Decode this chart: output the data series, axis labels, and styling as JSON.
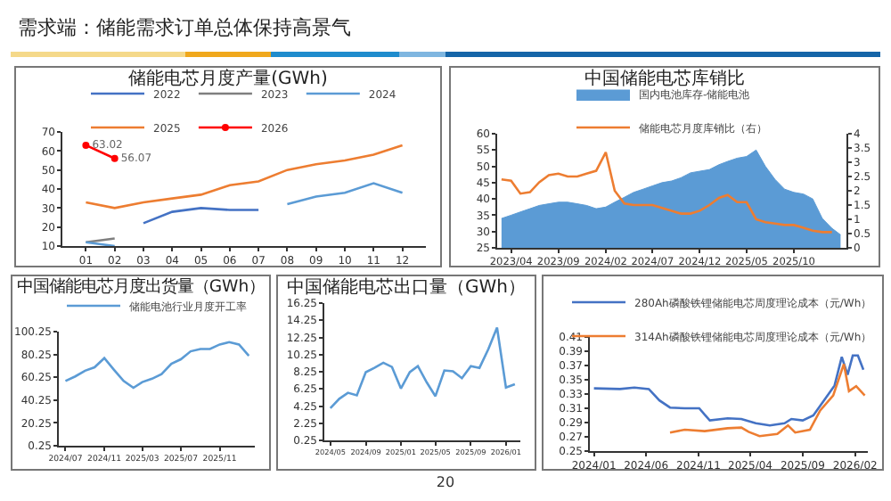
{
  "chart_data": [
    {
      "type": "other",
      "title": "需求端：储能需求订单总体保持高景气",
      "annotations": [
        "20"
      ]
    },
    {
      "type": "line",
      "title": "储能电芯月度产量(GWh)",
      "categories": [
        "01",
        "02",
        "03",
        "04",
        "05",
        "06",
        "07",
        "08",
        "09",
        "10",
        "11",
        "12"
      ],
      "ylim": [
        10,
        70
      ],
      "yticks": [
        10,
        20,
        30,
        40,
        50,
        60,
        70
      ],
      "legend": "top",
      "series": [
        {
          "name": "2022",
          "color": "#4472c4",
          "values": [
            null,
            null,
            22,
            28,
            30,
            29,
            29,
            null,
            null,
            null,
            null,
            null
          ]
        },
        {
          "name": "2023",
          "color": "#7f7f7f",
          "values": [
            12,
            14,
            null,
            null,
            null,
            null,
            null,
            null,
            null,
            null,
            null,
            null
          ]
        },
        {
          "name": "2024",
          "color": "#5b9bd5",
          "values": [
            12,
            10,
            null,
            null,
            null,
            null,
            null,
            32,
            36,
            38,
            43,
            38
          ]
        },
        {
          "name": "2025",
          "color": "#ed7d31",
          "values": [
            33,
            30,
            33,
            35,
            37,
            42,
            44,
            50,
            53,
            55,
            58,
            63
          ]
        },
        {
          "name": "2026",
          "color": "#ff0000",
          "marker": "circle",
          "values": [
            63.02,
            56.07,
            null,
            null,
            null,
            null,
            null,
            null,
            null,
            null,
            null,
            null
          ],
          "value_labels": [
            "63.02",
            "56.07",
            null,
            null,
            null,
            null,
            null,
            null,
            null,
            null,
            null,
            null
          ]
        }
      ]
    },
    {
      "type": "line",
      "title": "中国储能电芯库销比",
      "x": [
        "2023-03",
        "2023-04",
        "2023-05",
        "2023-06",
        "2023-07",
        "2023-08",
        "2023-09",
        "2023-10",
        "2023-11",
        "2023-12",
        "2024-01",
        "2024-02",
        "2024-03",
        "2024-04",
        "2024-05",
        "2024-06",
        "2024-07",
        "2024-08",
        "2024-09",
        "2024-10",
        "2024-11",
        "2024-12",
        "2025-01",
        "2025-02",
        "2025-03",
        "2025-04",
        "2025-05",
        "2025-06",
        "2025-07",
        "2025-08",
        "2025-09",
        "2025-10",
        "2025-11",
        "2025-12",
        "2026-01",
        "2026-02",
        "2026-03"
      ],
      "xlim": [
        "2023-02-15",
        "2026-03-20"
      ],
      "xticks": [
        {
          "value": "2023-04",
          "label": "2023/04"
        },
        {
          "value": "2023-09",
          "label": "2023/09"
        },
        {
          "value": "2024-02",
          "label": "2024/02"
        },
        {
          "value": "2024-07",
          "label": "2024/07"
        },
        {
          "value": "2024-12",
          "label": "2024/12"
        },
        {
          "value": "2025-05",
          "label": "2025/05"
        },
        {
          "value": "2025-10",
          "label": "2025/10"
        }
      ],
      "ylim": [
        25,
        60
      ],
      "yticks": [
        25,
        30,
        35,
        40,
        45,
        50,
        55,
        60
      ],
      "y2lim": [
        0,
        4
      ],
      "y2ticks": [
        0,
        0.5,
        1,
        1.5,
        2,
        2.5,
        3,
        3.5,
        4
      ],
      "legend": "top",
      "series": [
        {
          "name": "国内电池库存-储能电池",
          "type": "area",
          "color": "#5b9bd5",
          "values": [
            34,
            35,
            36,
            37,
            38,
            38.5,
            39,
            39,
            38.5,
            38,
            37,
            37.5,
            39,
            40.5,
            42,
            43,
            44,
            45,
            45.5,
            46.5,
            48,
            48.5,
            49,
            50.5,
            51.5,
            52.5,
            53,
            55,
            50,
            46,
            43,
            42,
            41.5,
            40,
            34,
            31,
            29
          ]
        },
        {
          "name": "储能电芯月度库销比（右）",
          "type": "line",
          "axis": "y2",
          "color": "#ed7d31",
          "values": [
            2.4,
            2.35,
            1.9,
            1.95,
            2.3,
            2.55,
            2.6,
            2.5,
            2.5,
            2.6,
            2.7,
            3.35,
            2.0,
            1.55,
            1.5,
            1.5,
            1.5,
            1.4,
            1.3,
            1.2,
            1.2,
            1.3,
            1.5,
            1.75,
            1.85,
            1.6,
            1.6,
            1.0,
            0.9,
            0.85,
            0.8,
            0.8,
            0.7,
            0.6,
            0.55,
            0.55,
            null
          ]
        }
      ]
    },
    {
      "type": "line",
      "title": "中国储能电芯月度出货量（GWh）",
      "x": [
        "2024-07",
        "2024-08",
        "2024-09",
        "2024-10",
        "2024-11",
        "2024-12",
        "2025-01",
        "2025-02",
        "2025-03",
        "2025-04",
        "2025-05",
        "2025-06",
        "2025-07",
        "2025-08",
        "2025-09",
        "2025-10",
        "2025-11",
        "2025-12",
        "2026-01",
        "2026-02"
      ],
      "xlim": [
        "2024-06-10",
        "2026-02-20"
      ],
      "xticks": [
        {
          "value": "2024-07",
          "label": "2024/07"
        },
        {
          "value": "2024-11",
          "label": "2024/11"
        },
        {
          "value": "2025-03",
          "label": "2025/03"
        },
        {
          "value": "2025-07",
          "label": "2025/07"
        },
        {
          "value": "2025-11",
          "label": "2025/11"
        }
      ],
      "ylim": [
        0.25,
        100.25
      ],
      "yticks": [
        0.25,
        20.25,
        40.25,
        60.25,
        80.25,
        100.25
      ],
      "legend": "top",
      "series": [
        {
          "name": "储能电池行业月度开工率",
          "color": "#5b9bd5",
          "values": [
            57,
            61,
            66,
            69,
            77,
            67,
            57,
            51,
            56,
            59,
            63,
            72,
            76,
            83,
            85,
            85,
            89,
            91,
            89,
            79
          ]
        }
      ]
    },
    {
      "type": "line",
      "title": "中国储能电芯出口量（GWh）",
      "x": [
        "2024-05",
        "2024-06",
        "2024-07",
        "2024-08",
        "2024-09",
        "2024-10",
        "2024-11",
        "2024-12",
        "2025-01",
        "2025-02",
        "2025-03",
        "2025-04",
        "2025-05",
        "2025-06",
        "2025-07",
        "2025-08",
        "2025-09",
        "2025-10",
        "2025-11",
        "2025-12",
        "2026-01",
        "2026-02"
      ],
      "xlim": [
        "2024-04-10",
        "2026-02-20"
      ],
      "xticks": [
        {
          "value": "2024-05",
          "label": "2024/05"
        },
        {
          "value": "2024-09",
          "label": "2024/09"
        },
        {
          "value": "2025-01",
          "label": "2025/01"
        },
        {
          "value": "2025-05",
          "label": "2025/05"
        },
        {
          "value": "2025-09",
          "label": "2025/09"
        },
        {
          "value": "2026-01",
          "label": "2026/01"
        }
      ],
      "ylim": [
        0.25,
        16.25
      ],
      "yticks": [
        0.25,
        2.25,
        4.25,
        6.25,
        8.25,
        10.25,
        12.25,
        14.25,
        16.25
      ],
      "series": [
        {
          "color": "#5b9bd5",
          "values": [
            4.0,
            5.1,
            5.8,
            5.5,
            8.2,
            8.7,
            9.3,
            8.8,
            6.3,
            8.2,
            8.9,
            7.0,
            5.4,
            8.4,
            8.3,
            7.5,
            8.9,
            8.7,
            10.9,
            13.4,
            6.4,
            6.8
          ]
        }
      ]
    },
    {
      "type": "line",
      "xlim": [
        "2023-12-20",
        "2026-03-10"
      ],
      "xticks": [
        {
          "value": "2024-01-01",
          "label": "2024/01"
        },
        {
          "value": "2024-06-01",
          "label": "2024/06"
        },
        {
          "value": "2024-11-01",
          "label": "2024/11"
        },
        {
          "value": "2025-04-01",
          "label": "2025/04"
        },
        {
          "value": "2025-09-01",
          "label": "2025/09"
        },
        {
          "value": "2026-02-01",
          "label": "2026/02"
        }
      ],
      "ylim": [
        0.25,
        0.41
      ],
      "yticks": [
        0.25,
        0.27,
        0.29,
        0.31,
        0.33,
        0.35,
        0.37,
        0.39,
        0.41
      ],
      "legend": "top",
      "series": [
        {
          "name": "280Ah磷酸铁锂储能电芯周度理论成本（元/Wh）",
          "color": "#4472c4",
          "x": [
            "2024-01-01",
            "2024-03-17",
            "2024-04-28",
            "2024-06-09",
            "2024-07-10",
            "2024-08-10",
            "2024-09-22",
            "2024-11-03",
            "2024-11-19",
            "2024-12-04",
            "2025-01-25",
            "2025-03-06",
            "2025-04-17",
            "2025-05-28",
            "2025-07-10",
            "2025-07-30",
            "2025-09-01",
            "2025-10-02",
            "2025-11-02",
            "2025-12-03",
            "2025-12-24",
            "2026-01-10",
            "2026-01-25",
            "2026-02-09",
            "2026-02-25"
          ],
          "values": [
            0.338,
            0.337,
            0.339,
            0.337,
            0.321,
            0.311,
            0.31,
            0.31,
            0.301,
            0.293,
            0.296,
            0.295,
            0.289,
            0.286,
            0.289,
            0.295,
            0.293,
            0.3,
            0.321,
            0.342,
            0.382,
            0.357,
            0.384,
            0.384,
            0.364
          ]
        },
        {
          "name": "314Ah磷酸铁锂储能电芯周度理论成本（元/Wh）",
          "color": "#ed7d31",
          "x": [
            "2024-08-10",
            "2024-09-22",
            "2024-11-19",
            "2025-01-25",
            "2025-03-06",
            "2025-03-27",
            "2025-04-28",
            "2025-06-19",
            "2025-07-20",
            "2025-08-10",
            "2025-09-22",
            "2025-10-22",
            "2025-11-29",
            "2025-12-30",
            "2026-01-14",
            "2026-02-04",
            "2026-03-01"
          ],
          "values": [
            0.276,
            0.28,
            0.278,
            0.282,
            0.283,
            0.277,
            0.271,
            0.274,
            0.286,
            0.276,
            0.28,
            0.307,
            0.328,
            0.372,
            0.334,
            0.341,
            0.328
          ]
        }
      ]
    }
  ]
}
